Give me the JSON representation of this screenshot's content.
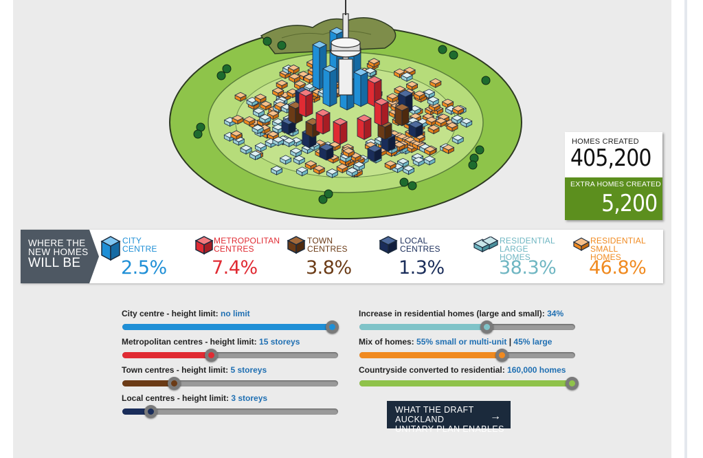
{
  "stats": {
    "homes_created_label": "HOMES CREATED",
    "homes_created_value": "405,200",
    "extra_homes_label": "EXTRA HOMES CREATED",
    "extra_homes_value": "5,200"
  },
  "legend": {
    "tag_line1": "WHERE THE",
    "tag_line2": "NEW HOMES",
    "tag_line3": "WILL BE",
    "items": [
      {
        "label": "CITY\nCENTRE",
        "pct": "2.5%",
        "color": "#1f8fd6",
        "icon": "blue-cube-icon"
      },
      {
        "label": "METROPOLITAN\nCENTRES",
        "pct": "7.4%",
        "color": "#e02b33",
        "icon": "red-cube-icon"
      },
      {
        "label": "TOWN\nCENTRES",
        "pct": "3.8%",
        "color": "#6b3b16",
        "icon": "brown-cube-icon"
      },
      {
        "label": "LOCAL\nCENTRES",
        "pct": "1.3%",
        "color": "#1a2d5a",
        "icon": "navy-cube-icon"
      },
      {
        "label": "RESIDENTIAL\nLARGE HOMES",
        "pct": "38.3%",
        "color": "#6fb6c2",
        "icon": "large-homes-icon"
      },
      {
        "label": "RESIDENTIAL\nSMALL HOMES",
        "pct": "46.8%",
        "color": "#f08a20",
        "icon": "small-homes-icon"
      }
    ]
  },
  "sliders": [
    {
      "label": "City centre - height limit: ",
      "value": "no limit",
      "level": 1.0,
      "color": "#1f8fd6"
    },
    {
      "label": "Metropolitan centres - height limit: ",
      "value": "15 storeys",
      "level": 0.41,
      "color": "#e02b33"
    },
    {
      "label": "Town centres - height limit: ",
      "value": "5 storeys",
      "level": 0.24,
      "color": "#6b3b16"
    },
    {
      "label": "Local centres - height limit: ",
      "value": "3 storeys",
      "level": 0.13,
      "color": "#1a2d5a"
    },
    {
      "label": "Increase in residential homes (large and small): ",
      "value": "34%",
      "level": 0.59,
      "color": "#7fc3c8"
    },
    {
      "label": "Mix of homes: ",
      "value": "55% small or multi-unit",
      "sep": " | ",
      "value2": "45% large",
      "level": 0.66,
      "color": "#f08a20"
    },
    {
      "label": "Countryside converted to residential: ",
      "value": "160,000 homes",
      "level": 1.0,
      "color": "#8fc24a"
    }
  ],
  "button": {
    "line1": "WHAT THE DRAFT AUCKLAND",
    "line2": "UNITARY PLAN ENABLES",
    "arrow": "→"
  }
}
